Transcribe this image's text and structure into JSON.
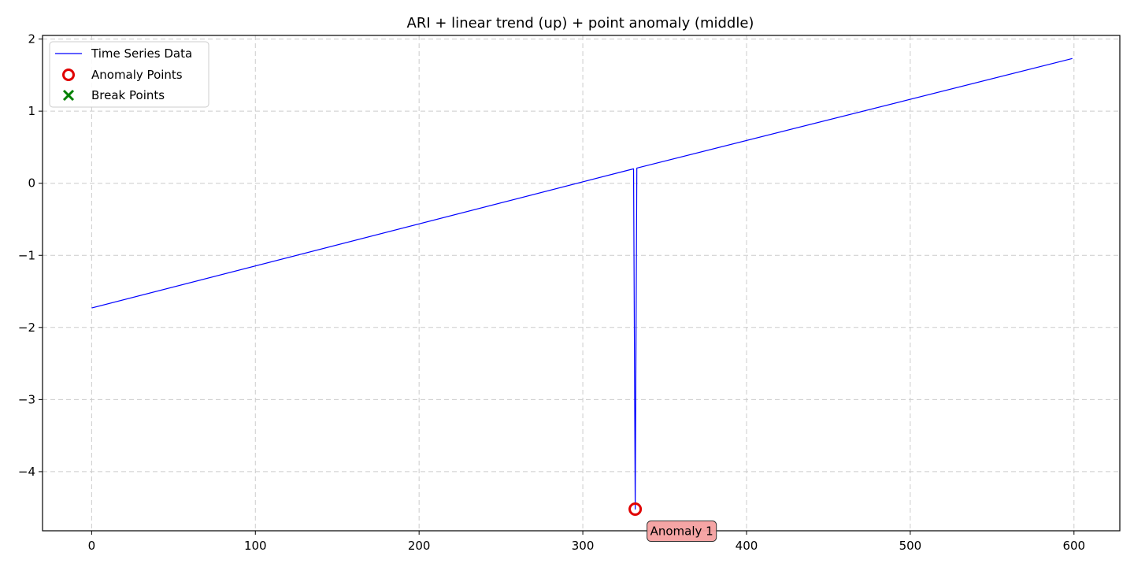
{
  "chart_data": {
    "type": "line",
    "title": "ARI + linear trend (up) + point anomaly (middle)",
    "xlabel": "",
    "ylabel": "",
    "xlim": [
      -30,
      628
    ],
    "ylim": [
      -4.82,
      2.05
    ],
    "xticks": [
      0,
      100,
      200,
      300,
      400,
      500,
      600
    ],
    "xtick_labels": [
      "0",
      "100",
      "200",
      "300",
      "400",
      "500",
      "600"
    ],
    "yticks": [
      2,
      1,
      0,
      -1,
      -2,
      -3,
      -4
    ],
    "ytick_labels": [
      "2",
      "1",
      "0",
      "−1",
      "−2",
      "−3",
      "−4"
    ],
    "grid": true,
    "legend_position": "top-left",
    "series": [
      {
        "name": "Time Series Data",
        "color": "#0000ff",
        "x": [
          0,
          331,
          332,
          333,
          599
        ],
        "y": [
          -1.73,
          0.2,
          -4.52,
          0.21,
          1.73
        ]
      }
    ],
    "anomaly_points": {
      "name": "Anomaly Points",
      "color": "#e00000",
      "x": [
        332
      ],
      "y": [
        -4.52
      ]
    },
    "break_points": {
      "name": "Break Points",
      "color": "#008000",
      "x": [],
      "y": []
    },
    "annotations": [
      {
        "text": "Anomaly 1",
        "x": 332,
        "y": -4.52,
        "background": "#f4a0a0"
      }
    ]
  }
}
